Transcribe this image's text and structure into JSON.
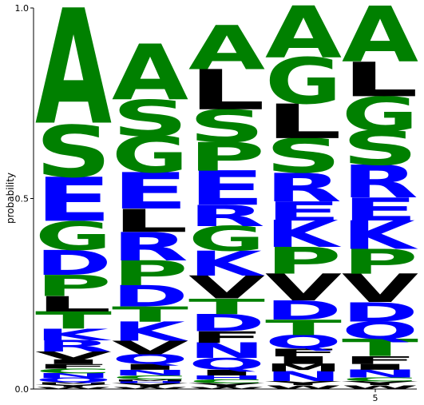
{
  "chart_data": {
    "type": "sequence-logo",
    "ylabel": "probability",
    "ylim": [
      0,
      1
    ],
    "yticks": [
      {
        "value": 0,
        "label": "0.0"
      },
      {
        "value": 0.5,
        "label": "0.5"
      },
      {
        "value": 1,
        "label": "1.0"
      }
    ],
    "xticks": [
      {
        "position": 5,
        "label": "5"
      }
    ],
    "colors": {
      "hydrophobic": "#000000",
      "polar": "#008000",
      "charged": "#0000ff"
    },
    "positions": [
      {
        "position": 1,
        "stack": [
          {
            "letter": "W",
            "color": "#000000",
            "prob": 0.005
          },
          {
            "letter": "Y",
            "color": "#000000",
            "prob": 0.007
          },
          {
            "letter": "M",
            "color": "#000000",
            "prob": 0.005
          },
          {
            "letter": "Q",
            "color": "#0000ff",
            "prob": 0.012
          },
          {
            "letter": "N",
            "color": "#0000ff",
            "prob": 0.012
          },
          {
            "letter": "C",
            "color": "#008000",
            "prob": 0.012
          },
          {
            "letter": "F",
            "color": "#000000",
            "prob": 0.012
          },
          {
            "letter": "I",
            "color": "#000000",
            "prob": 0.012
          },
          {
            "letter": "V",
            "color": "#000000",
            "prob": 0.02
          },
          {
            "letter": "R",
            "color": "#0000ff",
            "prob": 0.03
          },
          {
            "letter": "K",
            "color": "#0000ff",
            "prob": 0.03
          },
          {
            "letter": "T",
            "color": "#008000",
            "prob": 0.045
          },
          {
            "letter": "L",
            "color": "#000000",
            "prob": 0.04
          },
          {
            "letter": "P",
            "color": "#008000",
            "prob": 0.055
          },
          {
            "letter": "D",
            "color": "#0000ff",
            "prob": 0.065
          },
          {
            "letter": "G",
            "color": "#008000",
            "prob": 0.075
          },
          {
            "letter": "E",
            "color": "#0000ff",
            "prob": 0.115
          },
          {
            "letter": "S",
            "color": "#008000",
            "prob": 0.135
          },
          {
            "letter": "A",
            "color": "#008000",
            "prob": 0.301
          }
        ]
      },
      {
        "position": 2,
        "stack": [
          {
            "letter": "W",
            "color": "#000000",
            "prob": 0.005
          },
          {
            "letter": "Y",
            "color": "#000000",
            "prob": 0.01
          },
          {
            "letter": "H",
            "color": "#0000ff",
            "prob": 0.005
          },
          {
            "letter": "M",
            "color": "#000000",
            "prob": 0.005
          },
          {
            "letter": "C",
            "color": "#008000",
            "prob": 0.01
          },
          {
            "letter": "N",
            "color": "#0000ff",
            "prob": 0.015
          },
          {
            "letter": "I",
            "color": "#000000",
            "prob": 0.015
          },
          {
            "letter": "Q",
            "color": "#0000ff",
            "prob": 0.025
          },
          {
            "letter": "V",
            "color": "#000000",
            "prob": 0.035
          },
          {
            "letter": "K",
            "color": "#0000ff",
            "prob": 0.05
          },
          {
            "letter": "T",
            "color": "#008000",
            "prob": 0.04
          },
          {
            "letter": "D",
            "color": "#0000ff",
            "prob": 0.055
          },
          {
            "letter": "P",
            "color": "#008000",
            "prob": 0.065
          },
          {
            "letter": "R",
            "color": "#0000ff",
            "prob": 0.075
          },
          {
            "letter": "L",
            "color": "#000000",
            "prob": 0.06
          },
          {
            "letter": "E",
            "color": "#0000ff",
            "prob": 0.095
          },
          {
            "letter": "G",
            "color": "#008000",
            "prob": 0.095
          },
          {
            "letter": "S",
            "color": "#008000",
            "prob": 0.095
          },
          {
            "letter": "A",
            "color": "#008000",
            "prob": 0.145
          }
        ]
      },
      {
        "position": 3,
        "stack": [
          {
            "letter": "W",
            "color": "#000000",
            "prob": 0.005
          },
          {
            "letter": "Y",
            "color": "#000000",
            "prob": 0.01
          },
          {
            "letter": "C",
            "color": "#008000",
            "prob": 0.01
          },
          {
            "letter": "H",
            "color": "#0000ff",
            "prob": 0.01
          },
          {
            "letter": "I",
            "color": "#000000",
            "prob": 0.015
          },
          {
            "letter": "Q",
            "color": "#0000ff",
            "prob": 0.03
          },
          {
            "letter": "N",
            "color": "#0000ff",
            "prob": 0.04
          },
          {
            "letter": "F",
            "color": "#000000",
            "prob": 0.03
          },
          {
            "letter": "D",
            "color": "#0000ff",
            "prob": 0.045
          },
          {
            "letter": "T",
            "color": "#008000",
            "prob": 0.04
          },
          {
            "letter": "V",
            "color": "#000000",
            "prob": 0.06
          },
          {
            "letter": "K",
            "color": "#0000ff",
            "prob": 0.065
          },
          {
            "letter": "G",
            "color": "#008000",
            "prob": 0.065
          },
          {
            "letter": "R",
            "color": "#0000ff",
            "prob": 0.055
          },
          {
            "letter": "E",
            "color": "#0000ff",
            "prob": 0.09
          },
          {
            "letter": "P",
            "color": "#008000",
            "prob": 0.075
          },
          {
            "letter": "S",
            "color": "#008000",
            "prob": 0.085
          },
          {
            "letter": "L",
            "color": "#000000",
            "prob": 0.105
          },
          {
            "letter": "A",
            "color": "#008000",
            "prob": 0.115
          }
        ]
      },
      {
        "position": 4,
        "stack": [
          {
            "letter": "W",
            "color": "#000000",
            "prob": 0.01
          },
          {
            "letter": "Y",
            "color": "#000000",
            "prob": 0.01
          },
          {
            "letter": "N",
            "color": "#0000ff",
            "prob": 0.025
          },
          {
            "letter": "M",
            "color": "#000000",
            "prob": 0.02
          },
          {
            "letter": "I",
            "color": "#000000",
            "prob": 0.02
          },
          {
            "letter": "F",
            "color": "#000000",
            "prob": 0.02
          },
          {
            "letter": "Q",
            "color": "#0000ff",
            "prob": 0.035
          },
          {
            "letter": "T",
            "color": "#008000",
            "prob": 0.04
          },
          {
            "letter": "D",
            "color": "#0000ff",
            "prob": 0.05
          },
          {
            "letter": "V",
            "color": "#000000",
            "prob": 0.07
          },
          {
            "letter": "P",
            "color": "#008000",
            "prob": 0.07
          },
          {
            "letter": "K",
            "color": "#0000ff",
            "prob": 0.07
          },
          {
            "letter": "E",
            "color": "#0000ff",
            "prob": 0.05
          },
          {
            "letter": "R",
            "color": "#0000ff",
            "prob": 0.075
          },
          {
            "letter": "S",
            "color": "#008000",
            "prob": 0.09
          },
          {
            "letter": "L",
            "color": "#000000",
            "prob": 0.09
          },
          {
            "letter": "G",
            "color": "#008000",
            "prob": 0.12
          },
          {
            "letter": "A",
            "color": "#008000",
            "prob": 0.135
          }
        ]
      },
      {
        "position": 5,
        "stack": [
          {
            "letter": "W",
            "color": "#000000",
            "prob": 0.01
          },
          {
            "letter": "Y",
            "color": "#000000",
            "prob": 0.01
          },
          {
            "letter": "C",
            "color": "#008000",
            "prob": 0.01
          },
          {
            "letter": "N",
            "color": "#0000ff",
            "prob": 0.02
          },
          {
            "letter": "I",
            "color": "#000000",
            "prob": 0.015
          },
          {
            "letter": "F",
            "color": "#000000",
            "prob": 0.02
          },
          {
            "letter": "T",
            "color": "#008000",
            "prob": 0.045
          },
          {
            "letter": "Q",
            "color": "#0000ff",
            "prob": 0.045
          },
          {
            "letter": "D",
            "color": "#0000ff",
            "prob": 0.05
          },
          {
            "letter": "V",
            "color": "#000000",
            "prob": 0.075
          },
          {
            "letter": "P",
            "color": "#008000",
            "prob": 0.065
          },
          {
            "letter": "K",
            "color": "#0000ff",
            "prob": 0.075
          },
          {
            "letter": "E",
            "color": "#0000ff",
            "prob": 0.06
          },
          {
            "letter": "R",
            "color": "#0000ff",
            "prob": 0.085
          },
          {
            "letter": "S",
            "color": "#008000",
            "prob": 0.09
          },
          {
            "letter": "G",
            "color": "#008000",
            "prob": 0.09
          },
          {
            "letter": "L",
            "color": "#000000",
            "prob": 0.09
          },
          {
            "letter": "A",
            "color": "#008000",
            "prob": 0.145
          }
        ]
      }
    ]
  }
}
